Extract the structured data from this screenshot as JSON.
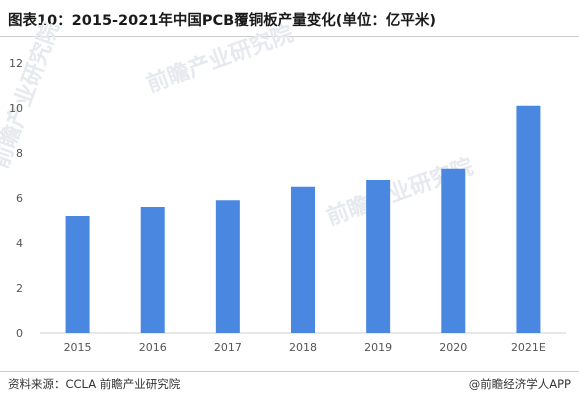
{
  "title": "图表10：2015-2021年中国PCB覆铜板产量变化(单位：亿平米)",
  "source": "资料来源：CCLA 前瞻产业研究院",
  "credit": "@前瞻经济学人APP",
  "watermark": "前瞻产业研究院",
  "colors": {
    "bar": "#4a87e0",
    "axis": "#d0d0d0",
    "tick": "#555555"
  },
  "chart_data": {
    "type": "bar",
    "categories": [
      "2015",
      "2016",
      "2017",
      "2018",
      "2019",
      "2020",
      "2021E"
    ],
    "values": [
      5.2,
      5.6,
      5.9,
      6.5,
      6.8,
      7.3,
      10.1
    ],
    "ylim": [
      0,
      12
    ],
    "yticks": [
      0,
      2,
      4,
      6,
      8,
      10,
      12
    ],
    "grid": false,
    "legend": "none"
  }
}
